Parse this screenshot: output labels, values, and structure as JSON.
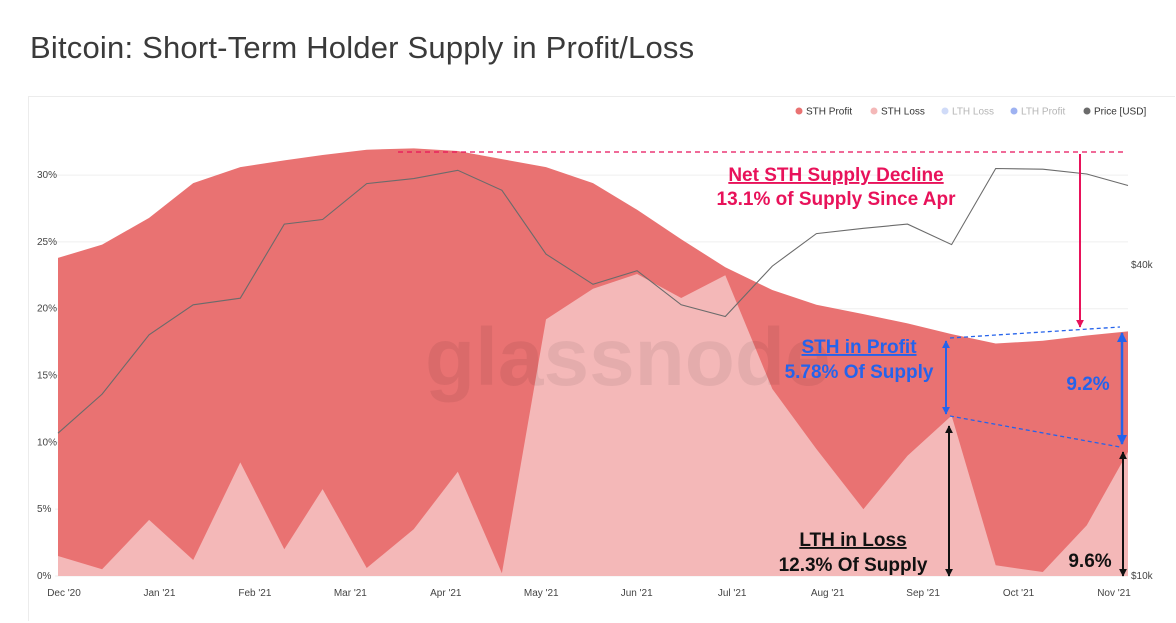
{
  "page": {
    "title": "Bitcoin: Short-Term Holder Supply in Profit/Loss",
    "watermark": "glassnode"
  },
  "colors": {
    "sth_profit": "#e97272",
    "sth_loss": "#f4b8b8",
    "lth_loss": "#a9bdf2",
    "lth_profit": "#4f72e6",
    "price": "#6b6b6b",
    "annotation_red": "#e8125a",
    "annotation_blue": "#2563eb",
    "annotation_black": "#111111"
  },
  "chart_data": {
    "type": "area",
    "title": "Bitcoin: Short-Term Holder Supply in Profit/Loss",
    "x_ticks": [
      "Dec '20",
      "Jan '21",
      "Feb '21",
      "Mar '21",
      "Apr '21",
      "May '21",
      "Jun '21",
      "Jul '21",
      "Aug '21",
      "Sep '21",
      "Oct '21",
      "Nov '21"
    ],
    "y_ticks": [
      "0%",
      "5%",
      "10%",
      "15%",
      "20%",
      "25%",
      "30%"
    ],
    "y2_ticks": [
      "$10k",
      "$40k"
    ],
    "ylim": [
      0,
      33
    ],
    "y2_scale": "log",
    "grid": true,
    "legend_position": "top-right",
    "legend": [
      {
        "name": "STH Profit",
        "color": "#e97272",
        "active": true
      },
      {
        "name": "STH Loss",
        "color": "#f4b8b8",
        "active": true
      },
      {
        "name": "LTH Loss",
        "color": "#a9bdf2",
        "active": false
      },
      {
        "name": "LTH Profit",
        "color": "#4f72e6",
        "active": false
      },
      {
        "name": "Price [USD]",
        "color": "#6b6b6b",
        "active": true
      }
    ],
    "x": [
      "2020-12-01",
      "2020-12-16",
      "2021-01-01",
      "2021-01-16",
      "2021-02-01",
      "2021-02-16",
      "2021-03-01",
      "2021-03-16",
      "2021-04-01",
      "2021-04-16",
      "2021-05-01",
      "2021-05-16",
      "2021-06-01",
      "2021-06-16",
      "2021-07-01",
      "2021-07-16",
      "2021-08-01",
      "2021-08-16",
      "2021-09-01",
      "2021-09-16",
      "2021-10-01",
      "2021-10-16",
      "2021-11-01",
      "2021-11-16",
      "2021-11-30"
    ],
    "series": [
      {
        "name": "STH Profit",
        "type": "area",
        "color": "#e97272",
        "values": [
          23.8,
          24.8,
          26.8,
          29.4,
          30.6,
          31.1,
          31.5,
          31.9,
          32.0,
          31.8,
          31.2,
          30.6,
          29.4,
          27.4,
          25.2,
          23.1,
          21.4,
          20.3,
          19.6,
          18.9,
          18.1,
          17.4,
          17.6,
          18.0,
          18.3
        ]
      },
      {
        "name": "STH Loss",
        "type": "area",
        "color": "#f4b8b8",
        "values": [
          1.5,
          0.5,
          4.2,
          1.2,
          8.5,
          2.0,
          6.5,
          0.6,
          3.5,
          7.8,
          0.2,
          19.2,
          21.5,
          22.6,
          20.8,
          22.5,
          14.0,
          9.5,
          5.0,
          9.0,
          12.0,
          0.8,
          0.3,
          3.8,
          9.3
        ]
      },
      {
        "name": "Price [USD]",
        "type": "line",
        "color": "#6b6b6b",
        "values": [
          18900,
          22500,
          29300,
          33500,
          34500,
          48000,
          49000,
          57500,
          58800,
          61000,
          55800,
          42000,
          36700,
          39000,
          33500,
          31800,
          39800,
          46000,
          47100,
          48000,
          43800,
          61500,
          61300,
          60000,
          57000
        ]
      }
    ],
    "annotations": [
      {
        "id": "net_sth",
        "line1": "Net STH Supply Decline",
        "line2": "13.1% of Supply Since Apr"
      },
      {
        "id": "sth_profit",
        "line1": "STH in Profit",
        "line2": "5.78% Of Supply"
      },
      {
        "id": "right_blue",
        "label": "9.2%"
      },
      {
        "id": "lth_loss",
        "line1": "LTH in Loss",
        "line2": "12.3% Of Supply"
      },
      {
        "id": "right_black",
        "label": "9.6%"
      }
    ]
  }
}
